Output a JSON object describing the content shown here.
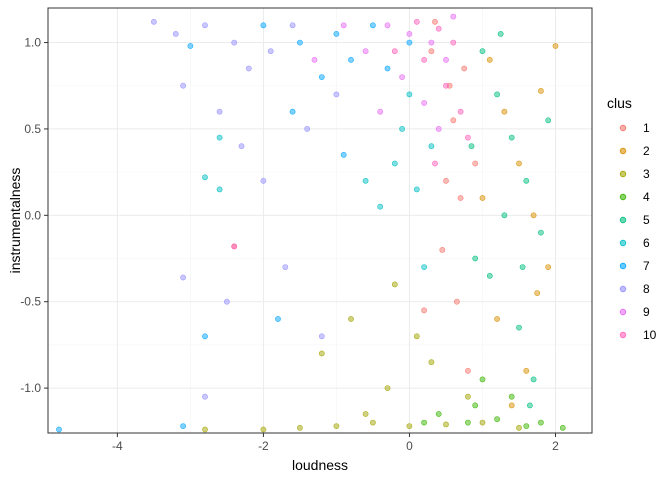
{
  "chart_data": {
    "type": "scatter",
    "title": "",
    "xlabel": "loudness",
    "ylabel": "instrumentalness",
    "xlim": [
      -4.95,
      2.5
    ],
    "ylim": [
      -1.26,
      1.2
    ],
    "x_ticks": [
      -4,
      -2,
      0,
      2
    ],
    "x_tick_labels": [
      "-4",
      "-2",
      "0",
      "2"
    ],
    "y_ticks": [
      -1.0,
      -0.5,
      0.0,
      0.5,
      1.0
    ],
    "y_tick_labels": [
      "-1.0",
      "-0.5",
      "0.0",
      "0.5",
      "1.0"
    ],
    "grid": true,
    "point_alpha": 0.5,
    "legend": {
      "title": "clus",
      "position": "right",
      "entries": [
        "1",
        "2",
        "3",
        "4",
        "5",
        "6",
        "7",
        "8",
        "9",
        "10"
      ]
    },
    "series": [
      {
        "name": "1",
        "color": "#F8766D",
        "points": [
          [
            0.55,
            0.75
          ],
          [
            0.6,
            0.55
          ],
          [
            0.3,
            0.95
          ],
          [
            0.5,
            0.2
          ],
          [
            0.7,
            0.1
          ],
          [
            0.45,
            -0.2
          ],
          [
            0.65,
            -0.5
          ],
          [
            0.8,
            -0.9
          ],
          [
            0.2,
            -0.55
          ],
          [
            -2.4,
            -0.18
          ],
          [
            0.9,
            0.3
          ],
          [
            0.35,
            1.12
          ],
          [
            0.75,
            0.85
          ]
        ]
      },
      {
        "name": "2",
        "color": "#D89000",
        "points": [
          [
            1.1,
            0.9
          ],
          [
            1.3,
            0.6
          ],
          [
            1.5,
            0.3
          ],
          [
            1.7,
            0.0
          ],
          [
            1.9,
            -0.3
          ],
          [
            1.2,
            -0.6
          ],
          [
            1.6,
            -0.9
          ],
          [
            2.0,
            0.98
          ],
          [
            1.8,
            0.72
          ],
          [
            1.4,
            -1.1
          ],
          [
            1.0,
            0.1
          ],
          [
            1.75,
            -0.45
          ]
        ]
      },
      {
        "name": "3",
        "color": "#A3A500",
        "points": [
          [
            -0.5,
            -1.2
          ],
          [
            0.0,
            -1.22
          ],
          [
            0.5,
            -1.21
          ],
          [
            1.0,
            -1.2
          ],
          [
            1.5,
            -1.23
          ],
          [
            -1.0,
            -1.22
          ],
          [
            -1.5,
            -1.23
          ],
          [
            -2.0,
            -1.24
          ],
          [
            -0.3,
            -1.0
          ],
          [
            0.3,
            -0.85
          ],
          [
            -0.8,
            -0.6
          ],
          [
            -1.2,
            -0.8
          ],
          [
            0.8,
            -1.05
          ],
          [
            -0.2,
            -0.4
          ],
          [
            0.1,
            -0.7
          ],
          [
            -2.8,
            -1.24
          ],
          [
            -0.6,
            -1.15
          ]
        ]
      },
      {
        "name": "4",
        "color": "#39B600",
        "points": [
          [
            0.8,
            -1.2
          ],
          [
            1.2,
            -1.18
          ],
          [
            1.6,
            -1.22
          ],
          [
            2.1,
            -1.23
          ],
          [
            0.4,
            -1.15
          ],
          [
            1.0,
            -0.95
          ],
          [
            1.4,
            -1.05
          ],
          [
            0.2,
            -1.2
          ],
          [
            1.8,
            -1.2
          ],
          [
            0.9,
            -1.1
          ]
        ]
      },
      {
        "name": "5",
        "color": "#00BF7D",
        "points": [
          [
            1.0,
            0.95
          ],
          [
            1.2,
            0.7
          ],
          [
            1.4,
            0.45
          ],
          [
            1.6,
            0.2
          ],
          [
            1.8,
            -0.1
          ],
          [
            1.1,
            -0.35
          ],
          [
            1.5,
            -0.65
          ],
          [
            1.7,
            -0.95
          ],
          [
            1.3,
            0.0
          ],
          [
            0.9,
            -0.25
          ],
          [
            1.9,
            0.55
          ],
          [
            1.25,
            1.05
          ],
          [
            0.85,
            0.4
          ],
          [
            1.55,
            -0.3
          ],
          [
            1.65,
            -1.1
          ]
        ]
      },
      {
        "name": "6",
        "color": "#00BFC4",
        "points": [
          [
            -0.2,
            0.3
          ],
          [
            0.1,
            0.15
          ],
          [
            -0.4,
            0.05
          ],
          [
            0.2,
            -0.3
          ],
          [
            -0.1,
            0.5
          ],
          [
            -2.8,
            0.22
          ],
          [
            -2.6,
            0.15
          ],
          [
            -2.6,
            0.45
          ],
          [
            0.0,
            0.7
          ],
          [
            -0.6,
            0.2
          ],
          [
            0.3,
            0.4
          ]
        ]
      },
      {
        "name": "7",
        "color": "#00A5FF",
        "points": [
          [
            -1.0,
            1.05
          ],
          [
            -1.5,
            1.0
          ],
          [
            -0.8,
            0.9
          ],
          [
            -1.2,
            0.8
          ],
          [
            -2.0,
            1.1
          ],
          [
            -0.5,
            1.1
          ],
          [
            0.0,
            1.0
          ],
          [
            -2.8,
            -0.7
          ],
          [
            -1.6,
            0.6
          ],
          [
            -0.9,
            0.35
          ],
          [
            -3.0,
            0.98
          ],
          [
            -0.3,
            0.85
          ],
          [
            -4.8,
            -1.24
          ],
          [
            -3.1,
            -1.22
          ],
          [
            -1.8,
            -0.6
          ]
        ]
      },
      {
        "name": "8",
        "color": "#9590FF",
        "points": [
          [
            -3.5,
            1.12
          ],
          [
            -3.2,
            1.05
          ],
          [
            -2.8,
            1.1
          ],
          [
            -2.4,
            1.0
          ],
          [
            -2.2,
            0.85
          ],
          [
            -1.9,
            0.95
          ],
          [
            -1.6,
            1.1
          ],
          [
            -3.1,
            0.75
          ],
          [
            -2.6,
            0.6
          ],
          [
            -2.0,
            0.2
          ],
          [
            -1.7,
            -0.3
          ],
          [
            -1.2,
            -0.7
          ],
          [
            -3.1,
            -0.36
          ],
          [
            -2.3,
            0.4
          ],
          [
            -1.4,
            0.5
          ],
          [
            -1.0,
            0.7
          ],
          [
            -2.8,
            -1.05
          ],
          [
            -2.5,
            -0.5
          ]
        ]
      },
      {
        "name": "9",
        "color": "#E76BF3",
        "points": [
          [
            -0.3,
            1.1
          ],
          [
            0.0,
            1.05
          ],
          [
            0.3,
            1.0
          ],
          [
            0.5,
            0.9
          ],
          [
            -0.6,
            0.95
          ],
          [
            -0.1,
            0.8
          ],
          [
            0.2,
            0.65
          ],
          [
            -0.4,
            0.6
          ],
          [
            0.4,
            0.5
          ],
          [
            -0.9,
            1.1
          ],
          [
            0.6,
            1.15
          ],
          [
            -1.3,
            0.9
          ]
        ]
      },
      {
        "name": "10",
        "color": "#FF62BC",
        "points": [
          [
            0.1,
            1.12
          ],
          [
            0.4,
            1.08
          ],
          [
            0.6,
            1.0
          ],
          [
            0.2,
            0.9
          ],
          [
            -0.2,
            0.95
          ],
          [
            0.5,
            0.75
          ],
          [
            0.7,
            0.6
          ],
          [
            -2.4,
            -0.18
          ],
          [
            0.35,
            0.3
          ],
          [
            0.8,
            0.45
          ]
        ]
      }
    ]
  }
}
